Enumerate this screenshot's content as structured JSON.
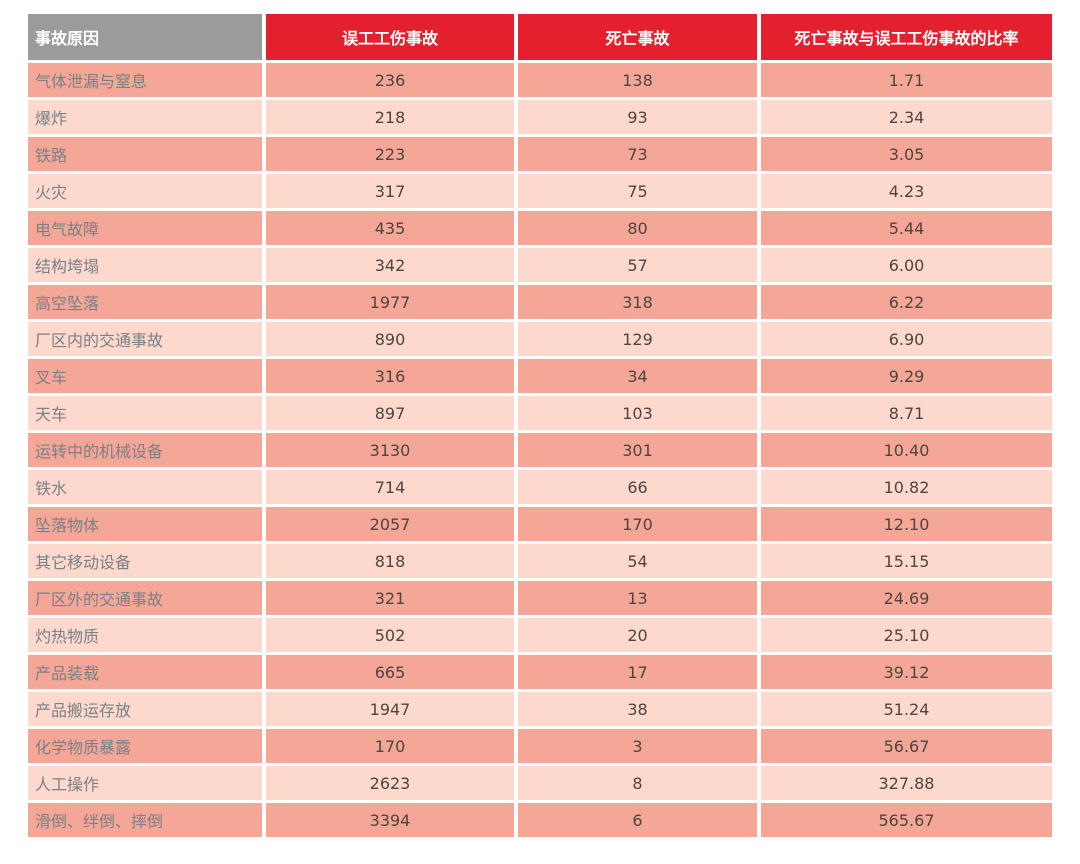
{
  "chart_data": {
    "type": "table",
    "columns": [
      "事故原因",
      "误工工伤事故",
      "死亡事故",
      "死亡事故与误工工伤事故的比率"
    ],
    "rows": [
      {
        "cause": "气体泄漏与窒息",
        "injury_accidents": "236",
        "fatal_accidents": "138",
        "ratio": "1.71"
      },
      {
        "cause": "爆炸",
        "injury_accidents": "218",
        "fatal_accidents": "93",
        "ratio": "2.34"
      },
      {
        "cause": "铁路",
        "injury_accidents": "223",
        "fatal_accidents": "73",
        "ratio": "3.05"
      },
      {
        "cause": "火灾",
        "injury_accidents": "317",
        "fatal_accidents": "75",
        "ratio": "4.23"
      },
      {
        "cause": "电气故障",
        "injury_accidents": "435",
        "fatal_accidents": "80",
        "ratio": "5.44"
      },
      {
        "cause": "结构垮塌",
        "injury_accidents": "342",
        "fatal_accidents": "57",
        "ratio": "6.00"
      },
      {
        "cause": "高空坠落",
        "injury_accidents": "1977",
        "fatal_accidents": "318",
        "ratio": "6.22"
      },
      {
        "cause": "厂区内的交通事故",
        "injury_accidents": "890",
        "fatal_accidents": "129",
        "ratio": "6.90"
      },
      {
        "cause": "叉车",
        "injury_accidents": "316",
        "fatal_accidents": "34",
        "ratio": "9.29"
      },
      {
        "cause": "天车",
        "injury_accidents": "897",
        "fatal_accidents": "103",
        "ratio": "8.71"
      },
      {
        "cause": "运转中的机械设备",
        "injury_accidents": "3130",
        "fatal_accidents": "301",
        "ratio": "10.40"
      },
      {
        "cause": "铁水",
        "injury_accidents": "714",
        "fatal_accidents": "66",
        "ratio": "10.82"
      },
      {
        "cause": "坠落物体",
        "injury_accidents": "2057",
        "fatal_accidents": "170",
        "ratio": "12.10"
      },
      {
        "cause": "其它移动设备",
        "injury_accidents": "818",
        "fatal_accidents": "54",
        "ratio": "15.15"
      },
      {
        "cause": "厂区外的交通事故",
        "injury_accidents": "321",
        "fatal_accidents": "13",
        "ratio": "24.69"
      },
      {
        "cause": "灼热物质",
        "injury_accidents": "502",
        "fatal_accidents": "20",
        "ratio": "25.10"
      },
      {
        "cause": "产品装载",
        "injury_accidents": "665",
        "fatal_accidents": "17",
        "ratio": "39.12"
      },
      {
        "cause": "产品搬运存放",
        "injury_accidents": "1947",
        "fatal_accidents": "38",
        "ratio": "51.24"
      },
      {
        "cause": "化学物质暴露",
        "injury_accidents": "170",
        "fatal_accidents": "3",
        "ratio": "56.67"
      },
      {
        "cause": "人工操作",
        "injury_accidents": "2623",
        "fatal_accidents": "8",
        "ratio": "327.88"
      },
      {
        "cause": "滑倒、绊倒、摔倒",
        "injury_accidents": "3394",
        "fatal_accidents": "6",
        "ratio": "565.67"
      }
    ],
    "colors": {
      "header_cause_bg": "#9b9b9b",
      "header_data_bg": "#e5202e",
      "row_odd_bg": "#f4a796",
      "row_even_bg": "#fcd9cc",
      "header_text": "#ffffff",
      "cause_text": "#7a8088",
      "value_text": "#4e4440"
    }
  }
}
